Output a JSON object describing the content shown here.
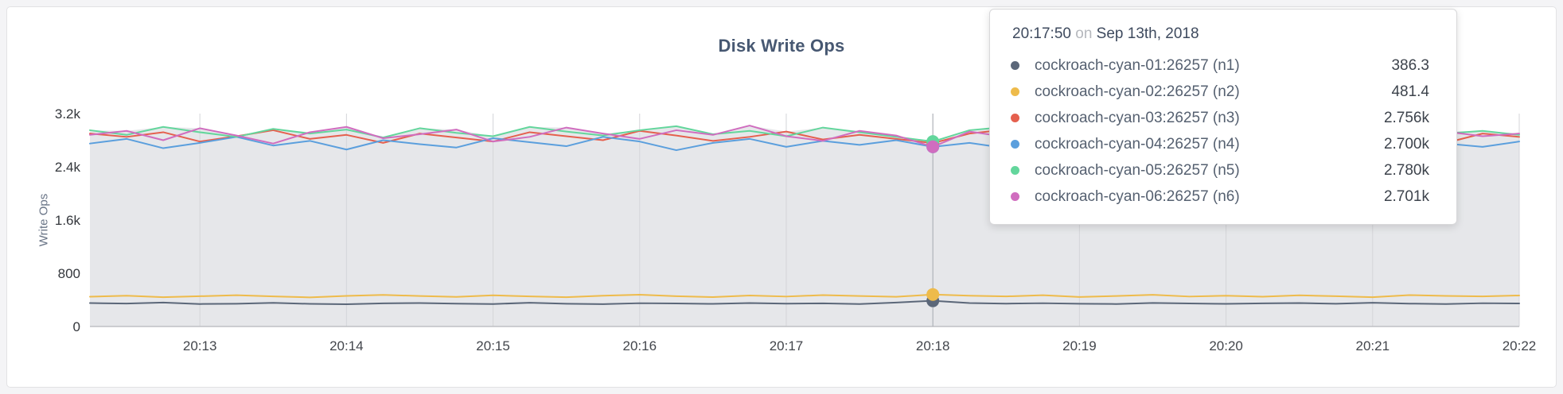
{
  "tooltip": {
    "time": "20:17:50",
    "on_word": "on",
    "date": "Sep 13th, 2018"
  },
  "chart_data": {
    "type": "line",
    "title": "Disk Write Ops",
    "xlabel": "",
    "ylabel": "Write Ops",
    "grid": "vertical",
    "legend_position": "tooltip-top-right",
    "xticks": [
      "20:13",
      "20:14",
      "20:15",
      "20:16",
      "20:17",
      "20:18",
      "20:19",
      "20:20",
      "20:21",
      "20:22"
    ],
    "xtick_minutes": [
      13,
      14,
      15,
      16,
      17,
      18,
      19,
      20,
      21,
      22
    ],
    "x_range_minutes": [
      12.25,
      22.0
    ],
    "x_start_minute": 12.25,
    "x_step_minute": 0.25,
    "yticks": [
      "0",
      "800",
      "1.6k",
      "2.4k",
      "3.2k"
    ],
    "ytick_values": [
      0,
      800,
      1600,
      2400,
      3200
    ],
    "ylim": [
      0,
      3200
    ],
    "hover": {
      "minute": 18.0,
      "index": 23,
      "time": "20:17:50",
      "date": "Sep 13th, 2018"
    },
    "colors": {
      "area_fill": "#e6e7ea",
      "gridline": "#d4d5d9",
      "axis_line": "#bfc0c4",
      "hover_line": "#a9adb4",
      "title_text": "#475872",
      "tick_text": "#43464c",
      "axis_label_text": "#6a7587"
    },
    "series": [
      {
        "name": "cockroach-cyan-01:26257 (n1)",
        "color": "#5b6779",
        "hover_value_label": "386.3",
        "values": [
          352,
          345,
          360,
          338,
          342,
          355,
          340,
          334,
          348,
          352,
          344,
          338,
          356,
          342,
          336,
          350,
          346,
          340,
          352,
          344,
          348,
          338,
          360,
          386,
          352,
          344,
          350,
          342,
          338,
          354,
          346,
          340,
          348,
          352,
          342,
          356,
          344,
          338,
          350,
          346
        ]
      },
      {
        "name": "cockroach-cyan-02:26257 (n2)",
        "color": "#eebb4b",
        "hover_value_label": "481.4",
        "values": [
          448,
          462,
          440,
          455,
          470,
          452,
          438,
          460,
          475,
          458,
          445,
          468,
          452,
          440,
          462,
          478,
          455,
          442,
          465,
          450,
          472,
          458,
          446,
          481,
          463,
          452,
          470,
          444,
          458,
          476,
          450,
          462,
          448,
          468,
          455,
          440,
          472,
          460,
          452,
          466
        ]
      },
      {
        "name": "cockroach-cyan-03:26257 (n3)",
        "color": "#e5604e",
        "hover_value_label": "2.756k",
        "values": [
          2900,
          2850,
          2920,
          2780,
          2860,
          2950,
          2820,
          2880,
          2760,
          2900,
          2840,
          2780,
          2920,
          2860,
          2800,
          2940,
          2870,
          2790,
          2850,
          2930,
          2810,
          2880,
          2820,
          2756,
          2900,
          2960,
          2840,
          2780,
          2920,
          2850,
          2790,
          2930,
          2860,
          2800,
          2880,
          2940,
          2820,
          2760,
          2900,
          2850
        ]
      },
      {
        "name": "cockroach-cyan-04:26257 (n4)",
        "color": "#5b9fdd",
        "hover_value_label": "2.700k",
        "values": [
          2750,
          2820,
          2680,
          2760,
          2850,
          2720,
          2790,
          2660,
          2800,
          2740,
          2690,
          2830,
          2770,
          2710,
          2850,
          2780,
          2650,
          2760,
          2820,
          2700,
          2790,
          2730,
          2800,
          2700,
          2760,
          2680,
          2840,
          2770,
          2720,
          2800,
          2660,
          2780,
          2850,
          2710,
          2760,
          2690,
          2820,
          2750,
          2700,
          2780
        ]
      },
      {
        "name": "cockroach-cyan-05:26257 (n5)",
        "color": "#63d69c",
        "hover_value_label": "2.780k",
        "values": [
          2950,
          2880,
          3000,
          2920,
          2850,
          2970,
          2900,
          2960,
          2840,
          2980,
          2910,
          2860,
          3000,
          2930,
          2870,
          2950,
          3010,
          2890,
          2940,
          2860,
          2990,
          2920,
          2850,
          2780,
          2950,
          3000,
          2880,
          2940,
          2860,
          2980,
          2920,
          3010,
          2870,
          2930,
          2990,
          2850,
          2960,
          2900,
          2940,
          2880
        ]
      },
      {
        "name": "cockroach-cyan-06:26257 (n6)",
        "color": "#d06dbf",
        "hover_value_label": "2.701k",
        "values": [
          2880,
          2940,
          2800,
          2980,
          2870,
          2750,
          2920,
          3000,
          2830,
          2890,
          2960,
          2780,
          2850,
          2990,
          2900,
          2820,
          2950,
          2880,
          3020,
          2860,
          2790,
          2940,
          2870,
          2701,
          2930,
          2850,
          2960,
          2890,
          2760,
          2920,
          2980,
          2840,
          2900,
          2770,
          2950,
          2880,
          2810,
          2930,
          2860,
          2900
        ]
      }
    ]
  }
}
